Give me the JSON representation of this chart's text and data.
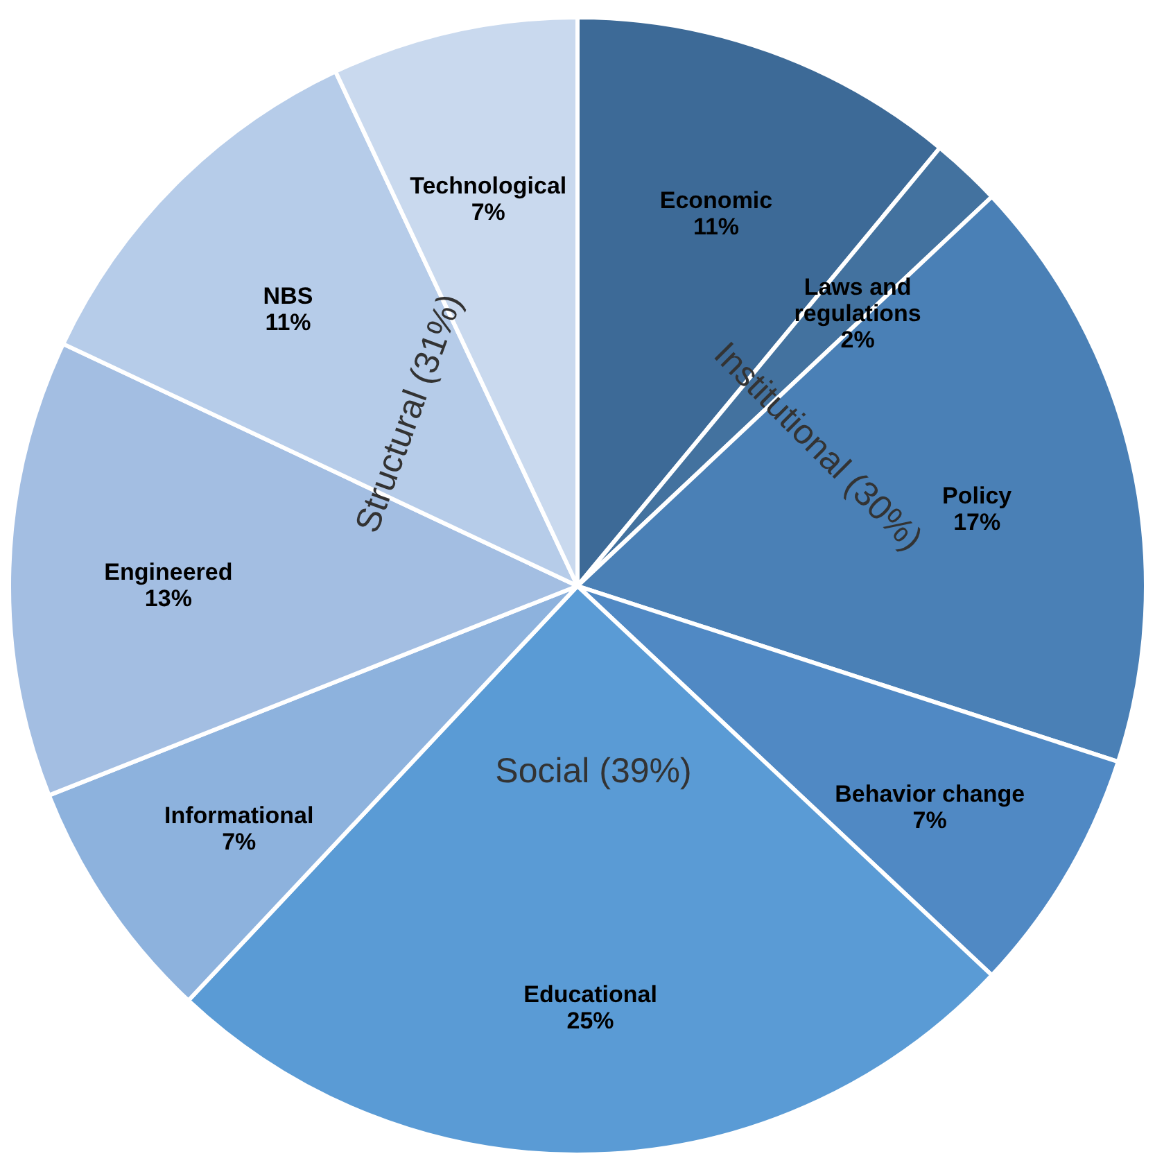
{
  "chart_data": {
    "type": "pie",
    "categories": [
      "Economic",
      "Laws and regulations",
      "Policy",
      "Behavior change",
      "Educational",
      "Informational",
      "Engineered",
      "NBS",
      "Technological"
    ],
    "values": [
      11,
      2,
      17,
      7,
      25,
      7,
      13,
      11,
      7
    ],
    "colors": [
      "#3d6a97",
      "#43729f",
      "#4a80b6",
      "#5089c4",
      "#5a9bd5",
      "#8db2dd",
      "#a3bee2",
      "#b6cce9",
      "#c9d9ee"
    ],
    "value_labels": [
      "11%",
      "2%",
      "17%",
      "7%",
      "25%",
      "7%",
      "13%",
      "11%",
      "7%"
    ],
    "annotations": [
      "Institutional (30%)",
      "Social (39%)",
      "Structural (31%)"
    ]
  }
}
